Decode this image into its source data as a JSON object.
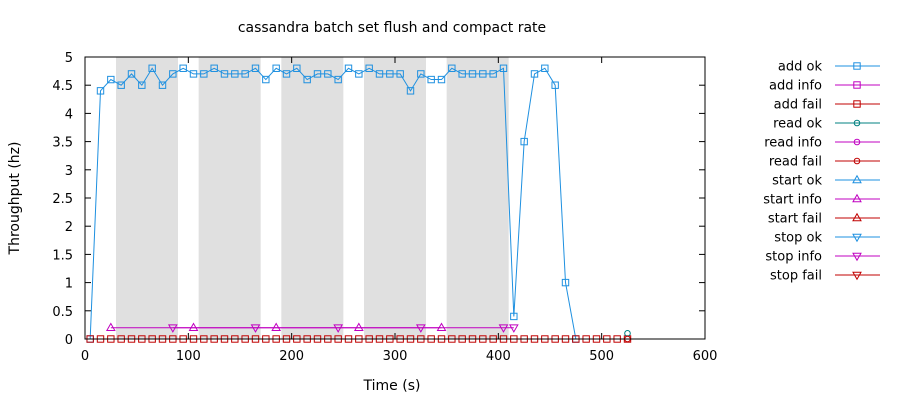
{
  "chart_data": {
    "type": "line",
    "title": "cassandra batch set flush and compact rate",
    "xlabel": "Time (s)",
    "ylabel": "Throughput (hz)",
    "xlim": [
      0,
      600
    ],
    "ylim": [
      0,
      5
    ],
    "x_ticks": [
      0,
      100,
      200,
      300,
      400,
      500,
      600
    ],
    "y_ticks": [
      0,
      0.5,
      1,
      1.5,
      2,
      2.5,
      3,
      3.5,
      4,
      4.5,
      5
    ],
    "legend_position": "right",
    "shaded_intervals": [
      [
        30,
        90
      ],
      [
        110,
        170
      ],
      [
        190,
        250
      ],
      [
        270,
        330
      ],
      [
        350,
        410
      ]
    ],
    "series": [
      {
        "name": "add ok",
        "color": "#1e90e0",
        "marker": "square",
        "points": [
          [
            5,
            0
          ],
          [
            15,
            4.4
          ],
          [
            25,
            4.6
          ],
          [
            35,
            4.5
          ],
          [
            45,
            4.7
          ],
          [
            55,
            4.5
          ],
          [
            65,
            4.8
          ],
          [
            75,
            4.5
          ],
          [
            85,
            4.7
          ],
          [
            95,
            4.8
          ],
          [
            105,
            4.7
          ],
          [
            115,
            4.7
          ],
          [
            125,
            4.8
          ],
          [
            135,
            4.7
          ],
          [
            145,
            4.7
          ],
          [
            155,
            4.7
          ],
          [
            165,
            4.8
          ],
          [
            175,
            4.6
          ],
          [
            185,
            4.8
          ],
          [
            195,
            4.7
          ],
          [
            205,
            4.8
          ],
          [
            215,
            4.6
          ],
          [
            225,
            4.7
          ],
          [
            235,
            4.7
          ],
          [
            245,
            4.6
          ],
          [
            255,
            4.8
          ],
          [
            265,
            4.7
          ],
          [
            275,
            4.8
          ],
          [
            285,
            4.7
          ],
          [
            295,
            4.7
          ],
          [
            305,
            4.7
          ],
          [
            315,
            4.4
          ],
          [
            325,
            4.7
          ],
          [
            335,
            4.6
          ],
          [
            345,
            4.6
          ],
          [
            355,
            4.8
          ],
          [
            365,
            4.7
          ],
          [
            375,
            4.7
          ],
          [
            385,
            4.7
          ],
          [
            395,
            4.7
          ],
          [
            405,
            4.8
          ],
          [
            415,
            0.4
          ],
          [
            425,
            3.5
          ],
          [
            435,
            4.7
          ],
          [
            445,
            4.8
          ],
          [
            455,
            4.5
          ],
          [
            465,
            1.0
          ],
          [
            475,
            0
          ]
        ]
      },
      {
        "name": "add info",
        "color": "#c000c0",
        "marker": "square",
        "points": []
      },
      {
        "name": "add fail",
        "color": "#c00000",
        "marker": "square",
        "points": [
          [
            5,
            0
          ],
          [
            15,
            0
          ],
          [
            25,
            0
          ],
          [
            35,
            0
          ],
          [
            45,
            0
          ],
          [
            55,
            0
          ],
          [
            65,
            0
          ],
          [
            75,
            0
          ],
          [
            85,
            0
          ],
          [
            95,
            0
          ],
          [
            105,
            0
          ],
          [
            115,
            0
          ],
          [
            125,
            0
          ],
          [
            135,
            0
          ],
          [
            145,
            0
          ],
          [
            155,
            0
          ],
          [
            165,
            0
          ],
          [
            175,
            0
          ],
          [
            185,
            0
          ],
          [
            195,
            0
          ],
          [
            205,
            0
          ],
          [
            215,
            0
          ],
          [
            225,
            0
          ],
          [
            235,
            0
          ],
          [
            245,
            0
          ],
          [
            255,
            0
          ],
          [
            265,
            0
          ],
          [
            275,
            0
          ],
          [
            285,
            0
          ],
          [
            295,
            0
          ],
          [
            305,
            0
          ],
          [
            315,
            0
          ],
          [
            325,
            0
          ],
          [
            335,
            0
          ],
          [
            345,
            0
          ],
          [
            355,
            0
          ],
          [
            365,
            0
          ],
          [
            375,
            0
          ],
          [
            385,
            0
          ],
          [
            395,
            0
          ],
          [
            405,
            0
          ],
          [
            415,
            0
          ],
          [
            425,
            0
          ],
          [
            435,
            0
          ],
          [
            445,
            0
          ],
          [
            455,
            0
          ],
          [
            465,
            0
          ],
          [
            475,
            0
          ],
          [
            485,
            0
          ],
          [
            495,
            0
          ],
          [
            505,
            0
          ],
          [
            515,
            0
          ],
          [
            525,
            0
          ]
        ]
      },
      {
        "name": "read ok",
        "color": "#008080",
        "marker": "circle",
        "points": [
          [
            525,
            0.1
          ]
        ]
      },
      {
        "name": "read info",
        "color": "#c000c0",
        "marker": "circle",
        "points": []
      },
      {
        "name": "read fail",
        "color": "#c00000",
        "marker": "circle",
        "points": [
          [
            525,
            0
          ]
        ]
      },
      {
        "name": "start ok",
        "color": "#1e90e0",
        "marker": "triangle-up",
        "points": []
      },
      {
        "name": "start info",
        "color": "#c000c0",
        "marker": "triangle-up",
        "points": [
          [
            25,
            0.2
          ],
          [
            105,
            0.2
          ],
          [
            185,
            0.2
          ],
          [
            265,
            0.2
          ],
          [
            345,
            0.2
          ]
        ]
      },
      {
        "name": "start fail",
        "color": "#c00000",
        "marker": "triangle-up",
        "points": []
      },
      {
        "name": "stop ok",
        "color": "#1e90e0",
        "marker": "triangle-down",
        "points": []
      },
      {
        "name": "stop info",
        "color": "#c000c0",
        "marker": "triangle-down",
        "points": [
          [
            85,
            0.2
          ],
          [
            165,
            0.2
          ],
          [
            245,
            0.2
          ],
          [
            325,
            0.2
          ],
          [
            405,
            0.2
          ],
          [
            415,
            0.2
          ]
        ]
      },
      {
        "name": "stop fail",
        "color": "#c00000",
        "marker": "triangle-down",
        "points": []
      }
    ]
  }
}
